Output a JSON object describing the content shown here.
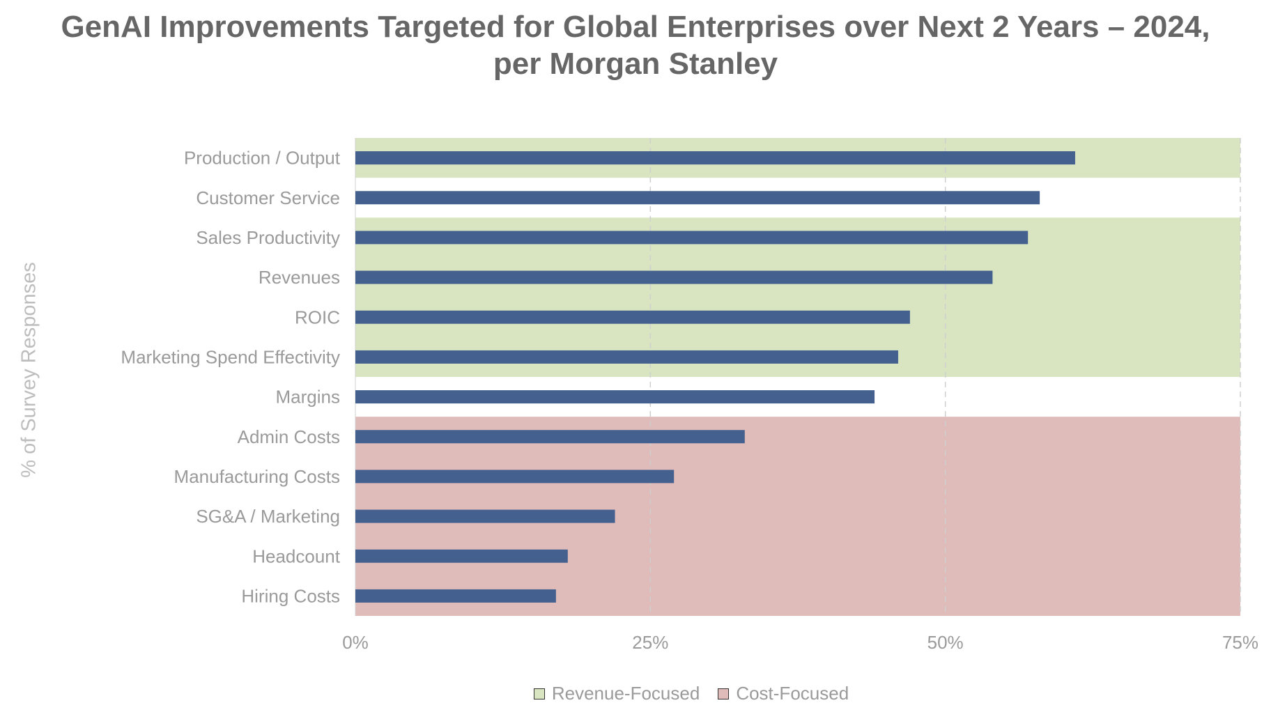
{
  "chart_data": {
    "type": "bar",
    "orientation": "horizontal",
    "title_lines": [
      "GenAI Improvements Targeted for Global Enterprises over Next 2 Years – 2024,",
      "per Morgan Stanley"
    ],
    "ylabel": "% of Survey Responses",
    "xlabel": "",
    "categories": [
      "Production / Output",
      "Customer Service",
      "Sales Productivity",
      "Revenues",
      "ROIC",
      "Marketing Spend Effectivity",
      "Margins",
      "Admin Costs",
      "Manufacturing Costs",
      "SG&A / Marketing",
      "Headcount",
      "Hiring Costs"
    ],
    "values": [
      61,
      58,
      57,
      54,
      47,
      46,
      44,
      33,
      27,
      22,
      18,
      17
    ],
    "xlim": [
      0,
      75
    ],
    "x_ticks": [
      0,
      25,
      50,
      75
    ],
    "x_tick_labels": [
      "0%",
      "25%",
      "50%",
      "75%"
    ],
    "grid": "vertical dashed",
    "bar_color": "#43608f",
    "background_bands": [
      {
        "legend": "Revenue-Focused",
        "color": "#d9e5c1",
        "categories": [
          "Production / Output"
        ]
      },
      {
        "legend": "Revenue-Focused",
        "color": "#d9e5c1",
        "categories": [
          "Sales Productivity",
          "Revenues",
          "ROIC",
          "Marketing Spend Effectivity"
        ]
      },
      {
        "legend": "Cost-Focused",
        "color": "#dfbbb9",
        "categories": [
          "Admin Costs",
          "Manufacturing Costs",
          "SG&A / Marketing",
          "Headcount",
          "Hiring Costs"
        ]
      }
    ],
    "legend": [
      {
        "label": "Revenue-Focused",
        "color": "#d9e5c1"
      },
      {
        "label": "Cost-Focused",
        "color": "#dfbbb9"
      }
    ],
    "legend_position": "bottom"
  }
}
